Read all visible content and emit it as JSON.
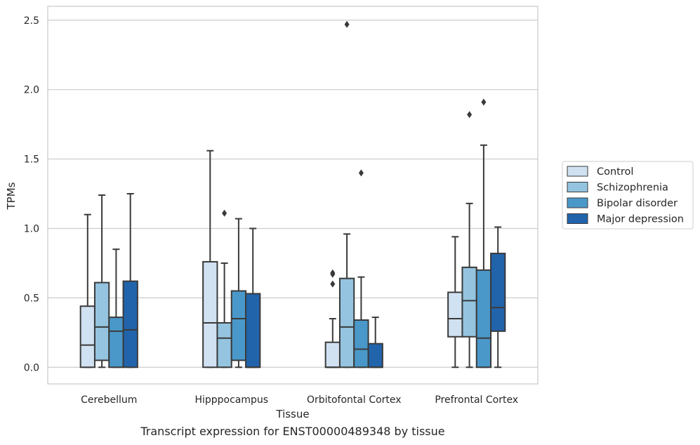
{
  "caption": "Transcript expression for ENST00000489348 by tissue",
  "chart_data": {
    "type": "box",
    "xlabel": "Tissue",
    "ylabel": "TPMs",
    "ylim": [
      -0.12,
      2.6
    ],
    "yticks": [
      "0.0",
      "0.5",
      "1.0",
      "1.5",
      "2.0",
      "2.5"
    ],
    "grid": true,
    "legend_position": "right",
    "categories": [
      "Cerebellum",
      "Hipppocampus",
      "Orbitofontal Cortex",
      "Prefrontal Cortex"
    ],
    "series": [
      {
        "name": "Control",
        "color": "#d0e1f2",
        "boxes": [
          {
            "min": 0.0,
            "q1": 0.0,
            "median": 0.16,
            "q3": 0.44,
            "max": 1.1,
            "outliers": []
          },
          {
            "min": 0.0,
            "q1": 0.0,
            "median": 0.32,
            "q3": 0.76,
            "max": 1.56,
            "outliers": []
          },
          {
            "min": 0.0,
            "q1": 0.0,
            "median": 0.0,
            "q3": 0.18,
            "max": 0.35,
            "outliers": [
              0.6,
              0.67,
              0.68
            ]
          },
          {
            "min": 0.0,
            "q1": 0.22,
            "median": 0.35,
            "q3": 0.54,
            "max": 0.94,
            "outliers": []
          }
        ]
      },
      {
        "name": "Schizophrenia",
        "color": "#94c4df",
        "boxes": [
          {
            "min": 0.0,
            "q1": 0.05,
            "median": 0.29,
            "q3": 0.61,
            "max": 1.24,
            "outliers": []
          },
          {
            "min": 0.0,
            "q1": 0.0,
            "median": 0.21,
            "q3": 0.32,
            "max": 0.75,
            "outliers": [
              1.11
            ]
          },
          {
            "min": 0.0,
            "q1": 0.0,
            "median": 0.29,
            "q3": 0.64,
            "max": 0.96,
            "outliers": [
              2.47
            ]
          },
          {
            "min": 0.0,
            "q1": 0.22,
            "median": 0.48,
            "q3": 0.72,
            "max": 1.18,
            "outliers": [
              1.82
            ]
          }
        ]
      },
      {
        "name": "Bipolar disorder",
        "color": "#4a98c9",
        "boxes": [
          {
            "min": 0.0,
            "q1": 0.0,
            "median": 0.26,
            "q3": 0.36,
            "max": 0.85,
            "outliers": []
          },
          {
            "min": 0.0,
            "q1": 0.05,
            "median": 0.35,
            "q3": 0.55,
            "max": 1.07,
            "outliers": []
          },
          {
            "min": 0.0,
            "q1": 0.0,
            "median": 0.13,
            "q3": 0.34,
            "max": 0.65,
            "outliers": [
              1.4
            ]
          },
          {
            "min": 0.0,
            "q1": 0.0,
            "median": 0.21,
            "q3": 0.7,
            "max": 1.6,
            "outliers": [
              1.91
            ]
          }
        ]
      },
      {
        "name": "Major depression",
        "color": "#2164ab",
        "boxes": [
          {
            "min": 0.0,
            "q1": 0.0,
            "median": 0.27,
            "q3": 0.62,
            "max": 1.25,
            "outliers": []
          },
          {
            "min": 0.0,
            "q1": 0.0,
            "median": 0.0,
            "q3": 0.53,
            "max": 1.0,
            "outliers": []
          },
          {
            "min": 0.0,
            "q1": 0.0,
            "median": 0.0,
            "q3": 0.17,
            "max": 0.36,
            "outliers": []
          },
          {
            "min": 0.0,
            "q1": 0.26,
            "median": 0.43,
            "q3": 0.82,
            "max": 1.01,
            "outliers": []
          }
        ]
      }
    ]
  }
}
